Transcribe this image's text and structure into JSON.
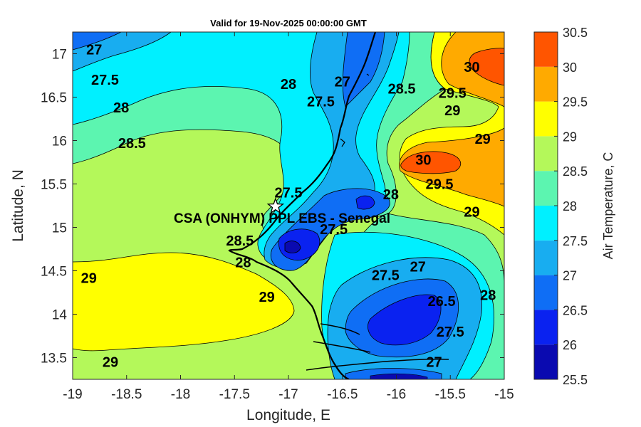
{
  "chart_data": {
    "type": "heatmap",
    "title": "Valid for 19-Nov-2025 00:00:00 GMT",
    "xlabel": "Longitude, E",
    "ylabel": "Latitude, N",
    "xlim": [
      -19,
      -15
    ],
    "ylim": [
      13.25,
      17.25
    ],
    "x_ticks": [
      -19,
      -18.5,
      -18,
      -17.5,
      -17,
      -16.5,
      -16,
      -15.5,
      -15
    ],
    "x_tick_labels": [
      "-19",
      "-18.5",
      "-18",
      "-17.5",
      "-17",
      "-16.5",
      "-16",
      "-15.5",
      "-15"
    ],
    "y_ticks": [
      13.5,
      14,
      14.5,
      15,
      15.5,
      16,
      16.5,
      17
    ],
    "y_tick_labels": [
      "13.5",
      "14",
      "14.5",
      "15",
      "15.5",
      "16",
      "16.5",
      "17"
    ],
    "colorbar": {
      "label": "Air Temperature, C",
      "levels": [
        25.5,
        26,
        26.5,
        27,
        27.5,
        28,
        28.5,
        29,
        29.5,
        30,
        30.5
      ],
      "level_labels": [
        "25.5",
        "26",
        "26.5",
        "27",
        "27.5",
        "28",
        "28.5",
        "29",
        "29.5",
        "30",
        "30.5"
      ],
      "colors": [
        "#0a0ab0",
        "#0a22f0",
        "#0f6ef5",
        "#18adf0",
        "#00f0ff",
        "#5cf5b0",
        "#b4f85a",
        "#ffff00",
        "#ffaa00",
        "#ff5500",
        "#ff0000"
      ]
    },
    "station": {
      "name": "CSA (ONHYM) PPL EBS - Senegal",
      "lon": -17.12,
      "lat": 15.24
    },
    "contour_labels": [
      {
        "text": "27",
        "lon": -18.8,
        "lat": 17.05
      },
      {
        "text": "27.5",
        "lon": -18.7,
        "lat": 16.7
      },
      {
        "text": "28",
        "lon": -18.55,
        "lat": 16.38
      },
      {
        "text": "28.5",
        "lon": -18.45,
        "lat": 15.97
      },
      {
        "text": "28",
        "lon": -17.0,
        "lat": 16.65
      },
      {
        "text": "27.5",
        "lon": -16.7,
        "lat": 16.45
      },
      {
        "text": "27",
        "lon": -16.5,
        "lat": 16.68
      },
      {
        "text": "28.5",
        "lon": -15.95,
        "lat": 16.6
      },
      {
        "text": "30",
        "lon": -15.3,
        "lat": 16.85
      },
      {
        "text": "29.5",
        "lon": -15.48,
        "lat": 16.55
      },
      {
        "text": "29",
        "lon": -15.48,
        "lat": 16.35
      },
      {
        "text": "29",
        "lon": -15.2,
        "lat": 16.02
      },
      {
        "text": "30",
        "lon": -15.75,
        "lat": 15.78
      },
      {
        "text": "29.5",
        "lon": -15.6,
        "lat": 15.5
      },
      {
        "text": "29",
        "lon": -15.3,
        "lat": 15.18
      },
      {
        "text": "28",
        "lon": -16.05,
        "lat": 15.38
      },
      {
        "text": "27.5",
        "lon": -17.0,
        "lat": 15.4
      },
      {
        "text": "28.5",
        "lon": -17.45,
        "lat": 14.85
      },
      {
        "text": "28",
        "lon": -17.42,
        "lat": 14.6
      },
      {
        "text": "27.5",
        "lon": -16.58,
        "lat": 14.98
      },
      {
        "text": "27.5",
        "lon": -16.1,
        "lat": 14.45
      },
      {
        "text": "27",
        "lon": -15.8,
        "lat": 14.55
      },
      {
        "text": "26.5",
        "lon": -15.58,
        "lat": 14.15
      },
      {
        "text": "28",
        "lon": -15.15,
        "lat": 14.22
      },
      {
        "text": "27.5",
        "lon": -15.5,
        "lat": 13.8
      },
      {
        "text": "27",
        "lon": -15.65,
        "lat": 13.45
      },
      {
        "text": "29",
        "lon": -18.85,
        "lat": 14.42
      },
      {
        "text": "29",
        "lon": -17.2,
        "lat": 14.2
      },
      {
        "text": "29",
        "lon": -18.65,
        "lat": 13.45
      }
    ]
  }
}
